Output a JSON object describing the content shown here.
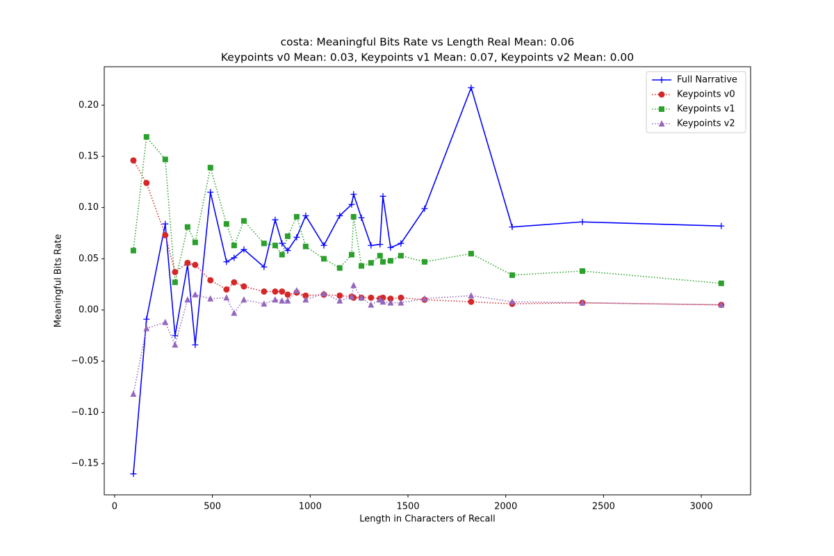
{
  "chart_data": {
    "type": "line",
    "title": [
      "costa: Meaningful Bits Rate vs Length Real Mean: 0.06",
      "Keypoints v0 Mean: 0.03, Keypoints v1 Mean: 0.07, Keypoints v2 Mean: 0.00"
    ],
    "xlabel": "Length in Characters of Recall",
    "ylabel": "Meaningful Bits Rate",
    "x": [
      96,
      163,
      259,
      309,
      373,
      412,
      490,
      572,
      611,
      661,
      764,
      821,
      856,
      885,
      931,
      977,
      1070,
      1151,
      1212,
      1222,
      1262,
      1311,
      1357,
      1372,
      1411,
      1464,
      1585,
      1823,
      2033,
      2392,
      3102
    ],
    "series": [
      {
        "name": "Full Narrative",
        "color": "#0000ff",
        "marker": "plus",
        "linestyle": "solid",
        "values": [
          -0.16,
          -0.009,
          0.084,
          -0.025,
          0.044,
          -0.034,
          0.115,
          0.047,
          0.051,
          0.059,
          0.042,
          0.088,
          0.065,
          0.058,
          0.071,
          0.092,
          0.063,
          0.092,
          0.103,
          0.113,
          0.09,
          0.063,
          0.064,
          0.111,
          0.061,
          0.065,
          0.099,
          0.217,
          0.081,
          0.086,
          0.082
        ]
      },
      {
        "name": "Keypoints v0",
        "color": "#d62728",
        "marker": "circle",
        "linestyle": "dotted",
        "values": [
          0.146,
          0.124,
          0.073,
          0.037,
          0.046,
          0.044,
          0.029,
          0.02,
          0.027,
          0.023,
          0.018,
          0.018,
          0.018,
          0.015,
          0.017,
          0.014,
          0.015,
          0.014,
          0.013,
          0.012,
          0.012,
          0.012,
          0.011,
          0.012,
          0.011,
          0.012,
          0.01,
          0.008,
          0.006,
          0.007,
          0.005
        ]
      },
      {
        "name": "Keypoints v1",
        "color": "#2ca02c",
        "marker": "square",
        "linestyle": "dotted",
        "values": [
          0.058,
          0.169,
          0.147,
          0.027,
          0.081,
          0.066,
          0.139,
          0.084,
          0.063,
          0.087,
          0.065,
          0.063,
          0.054,
          0.072,
          0.091,
          0.062,
          0.05,
          0.041,
          0.054,
          0.091,
          0.043,
          0.046,
          0.053,
          0.047,
          0.048,
          0.053,
          0.047,
          0.055,
          0.034,
          0.038,
          0.026
        ]
      },
      {
        "name": "Keypoints v2",
        "color": "#9467bd",
        "marker": "triangle",
        "linestyle": "dotted",
        "values": [
          -0.082,
          -0.018,
          -0.012,
          -0.034,
          0.01,
          0.015,
          0.011,
          0.012,
          -0.003,
          0.01,
          0.006,
          0.01,
          0.009,
          0.009,
          0.019,
          0.01,
          0.016,
          0.009,
          0.013,
          0.024,
          0.012,
          0.005,
          0.01,
          0.008,
          0.007,
          0.007,
          0.011,
          0.014,
          0.008,
          0.007,
          0.005
        ]
      }
    ],
    "xlim": [
      -53,
      3252
    ],
    "xticks": [
      0,
      500,
      1000,
      1500,
      2000,
      2500,
      3000
    ],
    "ylim": [
      -0.1805,
      0.2375
    ],
    "yticks": [
      {
        "value": -0.15,
        "label": "−0.15"
      },
      {
        "value": -0.1,
        "label": "−0.10"
      },
      {
        "value": -0.05,
        "label": "−0.05"
      },
      {
        "value": 0,
        "label": "0.00"
      },
      0.05,
      {
        "value": 0.1,
        "label": "0.10"
      },
      0.15,
      {
        "value": 0.2,
        "label": "0.20"
      }
    ],
    "grid": false,
    "legend": "upper right"
  }
}
